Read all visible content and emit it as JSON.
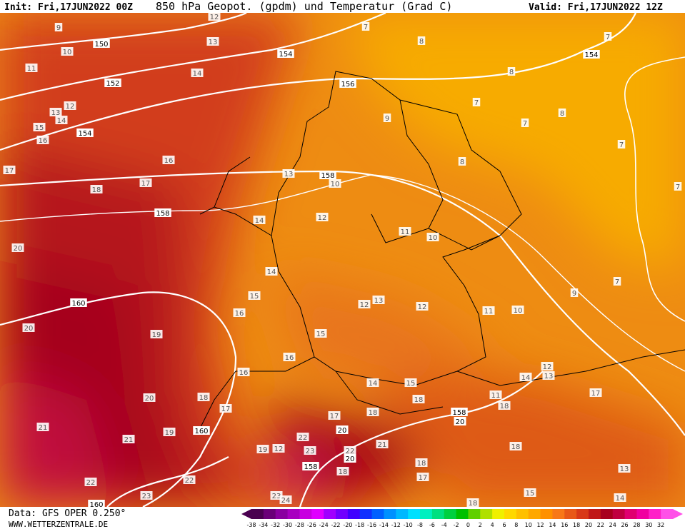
{
  "header": {
    "init": "Init: Fri,17JUN2022 00Z",
    "title": "850 hPa Geopot. (gpdm) und Temperatur (Grad C)",
    "valid": "Valid: Fri,17JUN2022 12Z"
  },
  "footer": {
    "data": "Data: GFS OPER 0.250°",
    "site": "WWW.WETTERZENTRALE.DE"
  },
  "legend": {
    "labels": [
      -38,
      -34,
      -32,
      -30,
      -28,
      -26,
      -24,
      -22,
      -20,
      -18,
      -16,
      -14,
      -12,
      -10,
      -8,
      -6,
      -4,
      -2,
      0,
      2,
      4,
      6,
      8,
      10,
      12,
      14,
      16,
      18,
      20,
      22,
      24,
      26,
      28,
      30,
      32
    ]
  },
  "temperature_labels": [
    "12",
    "9",
    "7",
    "7",
    "13",
    "8",
    "10",
    "11",
    "14",
    "8",
    "13",
    "12",
    "14",
    "15",
    "9",
    "7",
    "8",
    "7",
    "16",
    "7",
    "16",
    "8",
    "17",
    "17",
    "13",
    "10",
    "7",
    "18",
    "12",
    "14",
    "11",
    "10",
    "20",
    "14",
    "15",
    "7",
    "9",
    "12",
    "13",
    "12",
    "11",
    "10",
    "16",
    "20",
    "15",
    "19",
    "16",
    "16",
    "12",
    "14",
    "13",
    "14",
    "15",
    "20",
    "18",
    "17",
    "11",
    "17",
    "18",
    "18",
    "18",
    "17",
    "21",
    "19",
    "22",
    "21",
    "21",
    "19",
    "12",
    "23",
    "22",
    "18",
    "18",
    "13",
    "18",
    "17",
    "22",
    "22",
    "23",
    "23",
    "24",
    "15",
    "14",
    "18",
    "20",
    "20",
    "20"
  ],
  "geopotential_labels": [
    "150",
    "154",
    "154",
    "152",
    "156",
    "154",
    "158",
    "158",
    "160",
    "158",
    "160",
    "158",
    "160"
  ]
}
